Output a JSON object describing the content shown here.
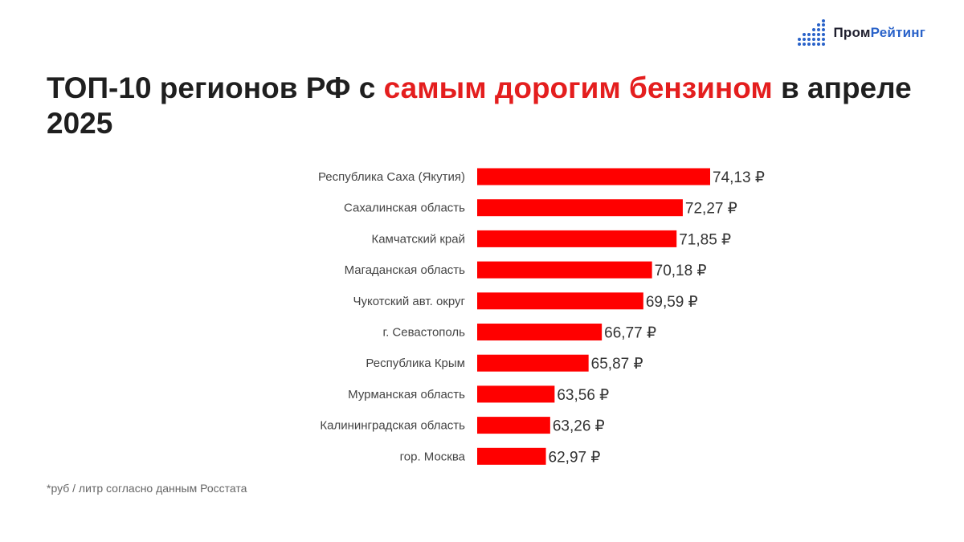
{
  "logo": {
    "part1": "Пром",
    "part2": "Рейтинг"
  },
  "title": {
    "part1": "ТОП-10 регионов РФ с ",
    "highlight": "самым дорогим бензином",
    "part2": " в апреле 2025"
  },
  "footnote": "*руб / литр согласно данным Росстата",
  "colors": {
    "bar": "#ff0000",
    "title_highlight": "#e41e1e",
    "logo_accent": "#2962c9"
  },
  "chart_data": {
    "type": "bar",
    "orientation": "horizontal",
    "categories": [
      "Республика Саха (Якутия)",
      "Сахалинская область",
      "Камчатский край",
      "Магаданская область",
      "Чукотский авт. округ",
      "г. Севастополь",
      "Республика Крым",
      "Мурманская область",
      "Калининградская область",
      "гор. Москва"
    ],
    "values": [
      74.13,
      72.27,
      71.85,
      70.18,
      69.59,
      66.77,
      65.87,
      63.56,
      63.26,
      62.97
    ],
    "value_labels": [
      "74,13 ₽",
      "72,27 ₽",
      "71,85 ₽",
      "70,18 ₽",
      "69,59 ₽",
      "66,77 ₽",
      "65,87 ₽",
      "63,56 ₽",
      "63,26 ₽",
      "62,97 ₽"
    ],
    "xlim": [
      58.3,
      74.13
    ],
    "grid": false,
    "legend": "none"
  }
}
